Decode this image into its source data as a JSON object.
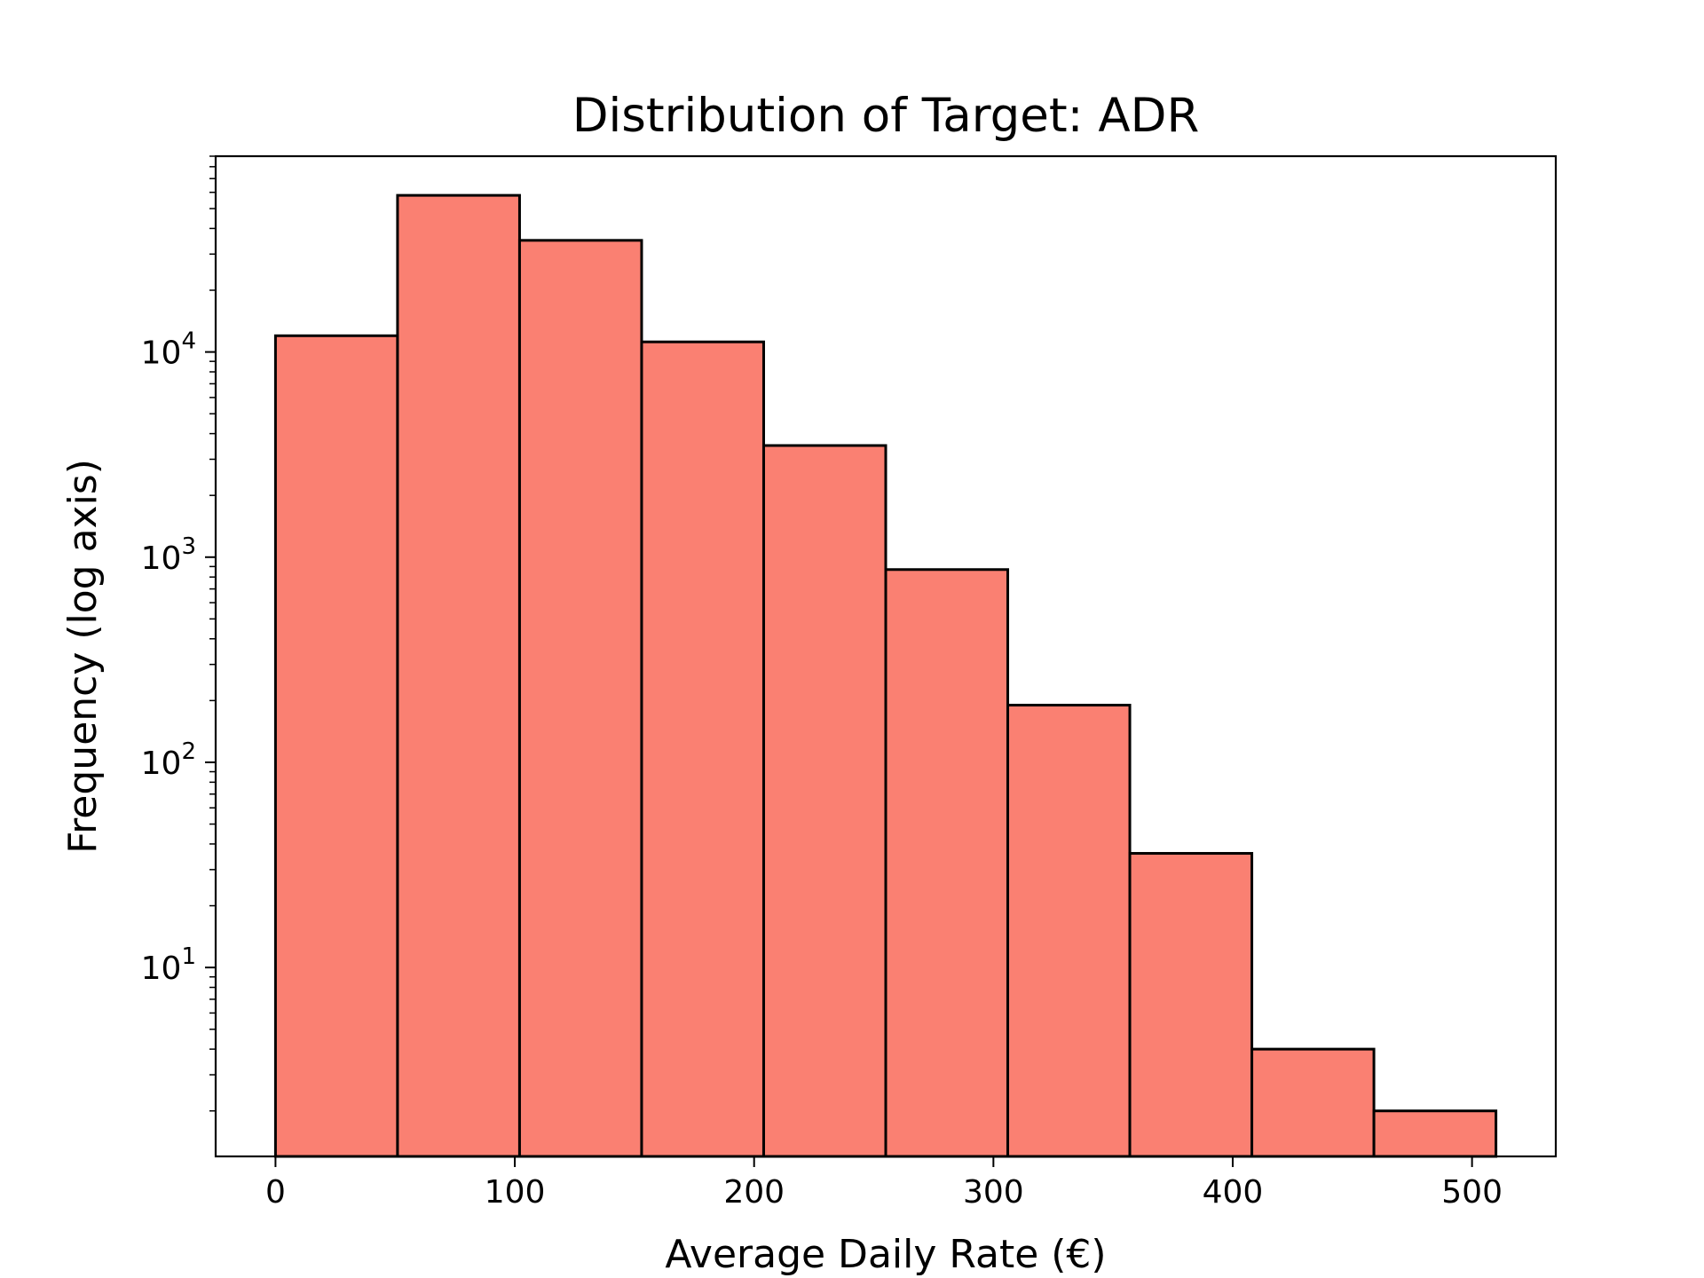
{
  "chart_data": {
    "type": "bar",
    "title": "Distribution of Target: ADR",
    "xlabel": "Average Daily Rate (€)",
    "ylabel": "Frequency (log axis)",
    "y_scale": "log",
    "bin_edges": [
      0,
      51,
      102,
      153,
      204,
      255,
      306,
      357,
      408,
      459,
      510
    ],
    "values": [
      12000,
      58000,
      35000,
      11200,
      3500,
      870,
      190,
      36,
      4,
      2
    ],
    "xlim": [
      -25,
      535
    ],
    "ylim": [
      1.2,
      90000
    ],
    "x_ticks": [
      {
        "value": 0,
        "label": "0"
      },
      {
        "value": 100,
        "label": "100"
      },
      {
        "value": 200,
        "label": "200"
      },
      {
        "value": 300,
        "label": "300"
      },
      {
        "value": 400,
        "label": "400"
      },
      {
        "value": 500,
        "label": "500"
      }
    ],
    "y_ticks": [
      {
        "value": 10,
        "base": "10",
        "exp": "1"
      },
      {
        "value": 100,
        "base": "10",
        "exp": "2"
      },
      {
        "value": 1000,
        "base": "10",
        "exp": "3"
      },
      {
        "value": 10000,
        "base": "10",
        "exp": "4"
      }
    ],
    "grid": false,
    "bar_color": "#fa8072",
    "edge_color": "#000000"
  }
}
